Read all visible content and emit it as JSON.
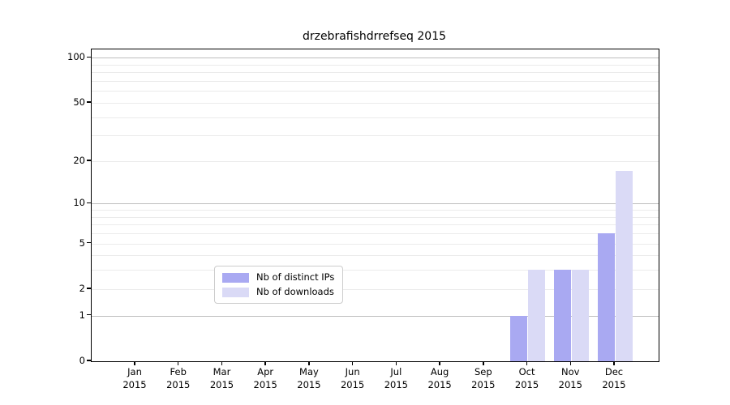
{
  "title": "drzebrafishdrrefseq 2015",
  "legend": {
    "items": [
      {
        "name": "distinct-ips",
        "label": "Nb of distinct IPs",
        "color": "#a9a9f2"
      },
      {
        "name": "downloads",
        "label": "Nb of downloads",
        "color": "#dadaf6"
      }
    ],
    "position": "lower center"
  },
  "axes": {
    "ytick_labels": [
      "0",
      "1",
      "2",
      "5",
      "10",
      "20",
      "50",
      "100"
    ],
    "xtick_months": [
      "Jan",
      "Feb",
      "Mar",
      "Apr",
      "May",
      "Jun",
      "Jul",
      "Aug",
      "Sep",
      "Oct",
      "Nov",
      "Dec"
    ],
    "xtick_year": "2015"
  },
  "colors": {
    "bar_distinct_ips": "#a9a9f2",
    "bar_downloads": "#dadaf6",
    "grid_major": "#bdbdbd",
    "grid_minor": "#ebebeb",
    "spine": "#000000"
  },
  "chart_data": {
    "type": "bar",
    "title": "drzebrafishdrrefseq 2015",
    "categories": [
      "Jan 2015",
      "Feb 2015",
      "Mar 2015",
      "Apr 2015",
      "May 2015",
      "Jun 2015",
      "Jul 2015",
      "Aug 2015",
      "Sep 2015",
      "Oct 2015",
      "Nov 2015",
      "Dec 2015"
    ],
    "series": [
      {
        "name": "Nb of distinct IPs",
        "color": "#a9a9f2",
        "values": [
          0,
          0,
          0,
          0,
          0,
          0,
          0,
          0,
          0,
          1,
          3,
          6
        ]
      },
      {
        "name": "Nb of downloads",
        "color": "#dadaf6",
        "values": [
          0,
          0,
          0,
          0,
          0,
          0,
          0,
          0,
          0,
          3,
          3,
          17
        ]
      }
    ],
    "xlabel": "",
    "ylabel": "",
    "yscale": "log1p",
    "ylim": [
      0,
      113.8
    ],
    "yticks": [
      0,
      1,
      2,
      5,
      10,
      20,
      50,
      100
    ],
    "grid_major": [
      1,
      10,
      100
    ],
    "grid_minor": [
      2,
      3,
      4,
      5,
      6,
      7,
      8,
      9,
      20,
      30,
      40,
      50,
      60,
      70,
      80,
      90
    ],
    "grid": "on",
    "legend_position": "lower center"
  }
}
